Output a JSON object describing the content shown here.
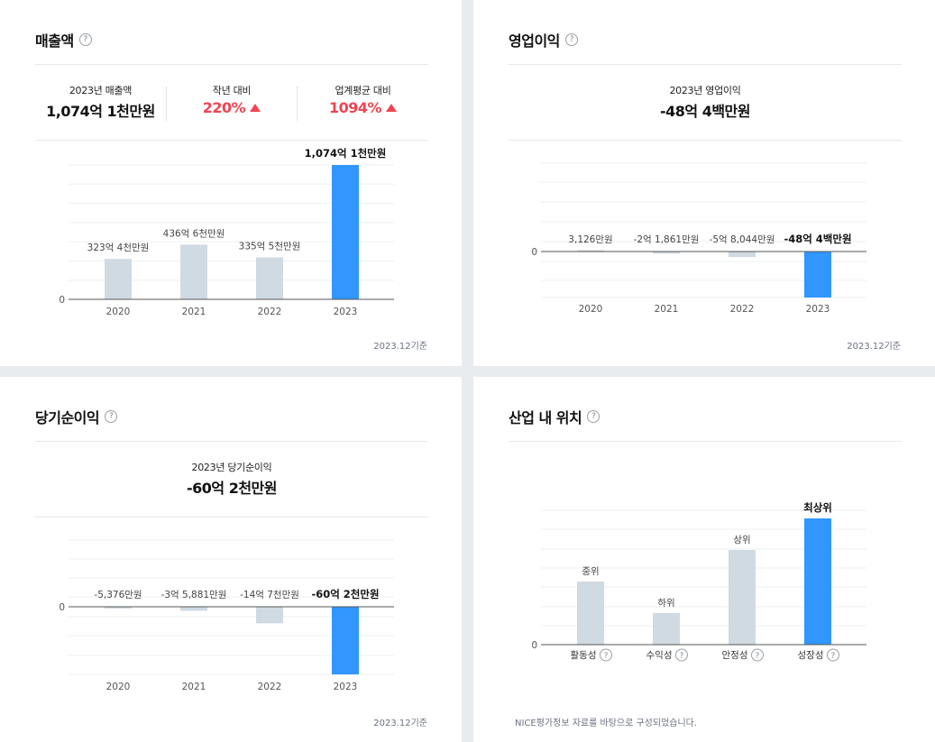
{
  "revenue": {
    "title": "매출액",
    "help": "?",
    "summary": {
      "year_label": "2023년 매출액",
      "year_value": "1,074억 1천만원",
      "yoy_label": "작년 대비",
      "yoy_value": "220%",
      "industry_label": "업계평균 대비",
      "industry_value": "1094%"
    },
    "footnote": "2023.12기준"
  },
  "operating": {
    "title": "영업이익",
    "help": "?",
    "summary": {
      "label": "2023년 영업이익",
      "value": "-48억 4백만원"
    },
    "footnote": "2023.12기준"
  },
  "net": {
    "title": "당기순이익",
    "help": "?",
    "summary": {
      "label": "2023년 당기순이익",
      "value": "-60억 2천만원"
    },
    "footnote": "2023.12기준"
  },
  "position": {
    "title": "산업 내 위치",
    "help": "?",
    "footnote": "NICE평가정보 자료를 바탕으로 구성되었습니다."
  },
  "colors": {
    "highlight": "#3196ff",
    "bar": "#d0dae2",
    "up": "#f04452"
  },
  "chart_data": [
    {
      "type": "bar",
      "title": "매출액",
      "unit": "억원",
      "categories": [
        "2020",
        "2021",
        "2022",
        "2023"
      ],
      "values": [
        323.4,
        436.6,
        335.5,
        1074.1
      ],
      "data_labels": [
        "323억 4천만원",
        "436억 6천만원",
        "335억 5천만원",
        "1,074억 1천만원"
      ],
      "zero_label": "0",
      "highlight_index": 3,
      "grid": true,
      "ylim": [
        0,
        1150
      ]
    },
    {
      "type": "bar",
      "title": "영업이익",
      "unit": "억원",
      "categories": [
        "2020",
        "2021",
        "2022",
        "2023"
      ],
      "values": [
        0.3126,
        -2.1861,
        -5.8044,
        -48.04
      ],
      "data_labels": [
        "3,126만원",
        "-2억 1,861만원",
        "-5억 8,044만원",
        "-48억 4백만원"
      ],
      "zero_label": "0",
      "highlight_index": 3,
      "grid": true
    },
    {
      "type": "bar",
      "title": "당기순이익",
      "unit": "억원",
      "categories": [
        "2020",
        "2021",
        "2022",
        "2023"
      ],
      "values": [
        -0.5376,
        -3.5881,
        -14.7,
        -60.2
      ],
      "data_labels": [
        "-5,376만원",
        "-3억 5,881만원",
        "-14억 7천만원",
        "-60억 2천만원"
      ],
      "zero_label": "0",
      "highlight_index": 3,
      "grid": true
    },
    {
      "type": "bar",
      "title": "산업 내 위치",
      "categories": [
        "활동성",
        "수익성",
        "안정성",
        "성장성"
      ],
      "values": [
        2,
        1,
        3,
        4
      ],
      "data_labels": [
        "중위",
        "하위",
        "상위",
        "최상위"
      ],
      "zero_label": "0",
      "highlight_index": 3,
      "grid": true
    }
  ]
}
